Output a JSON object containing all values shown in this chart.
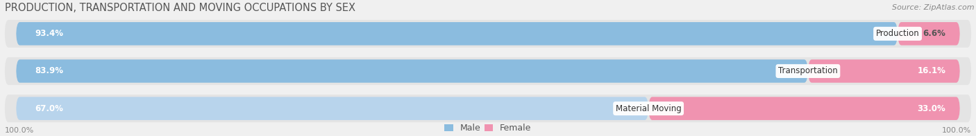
{
  "title": "PRODUCTION, TRANSPORTATION AND MOVING OCCUPATIONS BY SEX",
  "source": "Source: ZipAtlas.com",
  "categories": [
    "Production",
    "Transportation",
    "Material Moving"
  ],
  "male_values": [
    93.4,
    83.9,
    67.0
  ],
  "female_values": [
    6.6,
    16.1,
    33.0
  ],
  "male_color": "#8bbcdf",
  "female_color": "#f093b0",
  "male_light_color": "#b8d4ec",
  "female_label_color": "#ffffff",
  "male_label_color": "#ffffff",
  "bg_color": "#f0f0f0",
  "row_bg_color": "#e4e4e4",
  "title_fontsize": 10.5,
  "bar_label_fontsize": 8.5,
  "cat_fontsize": 8.5,
  "legend_fontsize": 9,
  "source_fontsize": 8,
  "axis_label_fontsize": 8,
  "xlim_left_label": "100.0%",
  "xlim_right_label": "100.0%"
}
